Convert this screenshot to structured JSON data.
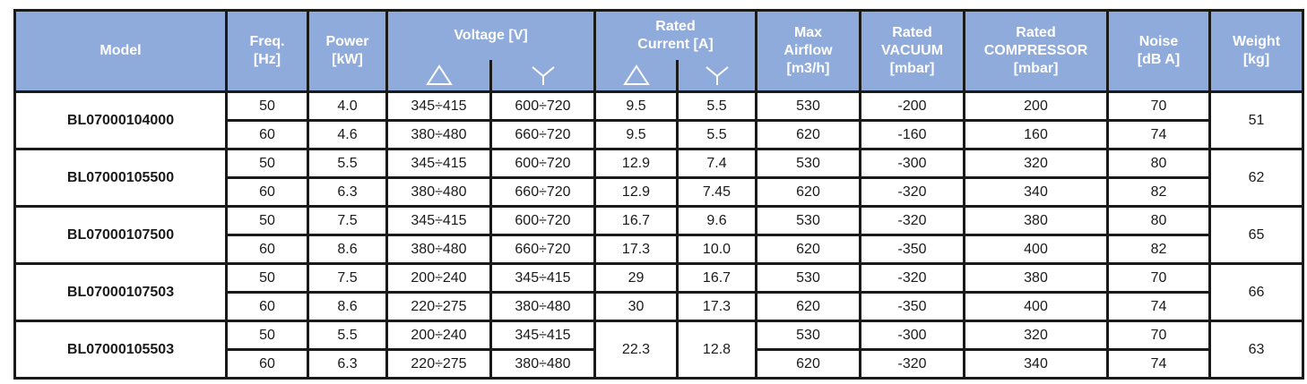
{
  "header": {
    "model": "Model",
    "freq": [
      "Freq.",
      "[Hz]"
    ],
    "power": [
      "Power",
      "[kW]"
    ],
    "voltage": "Voltage [V]",
    "rated_current": [
      "Rated",
      "Current [A]"
    ],
    "airflow": [
      "Max",
      "Airflow",
      "[m3/h]"
    ],
    "vacuum": [
      "Rated",
      "VACUUM",
      "[mbar]"
    ],
    "compressor": [
      "Rated",
      "COMPRESSOR",
      "[mbar]"
    ],
    "noise": [
      "Noise",
      "[dB A]"
    ],
    "weight": [
      "Weight",
      "[kg]"
    ],
    "delta_icon": "delta-icon",
    "star_icon": "star-icon"
  },
  "models": [
    {
      "model": "BL07000104000",
      "weight": "51",
      "rows": [
        {
          "freq": "50",
          "power": "4.0",
          "v_delta": "345÷415",
          "v_star": "600÷720",
          "i_delta": "9.5",
          "i_star": "5.5",
          "airflow": "530",
          "vacuum": "-200",
          "compressor": "200",
          "noise": "70"
        },
        {
          "freq": "60",
          "power": "4.6",
          "v_delta": "380÷480",
          "v_star": "660÷720",
          "i_delta": "9.5",
          "i_star": "5.5",
          "airflow": "620",
          "vacuum": "-160",
          "compressor": "160",
          "noise": "74"
        }
      ]
    },
    {
      "model": "BL07000105500",
      "weight": "62",
      "rows": [
        {
          "freq": "50",
          "power": "5.5",
          "v_delta": "345÷415",
          "v_star": "600÷720",
          "i_delta": "12.9",
          "i_star": "7.4",
          "airflow": "530",
          "vacuum": "-300",
          "compressor": "320",
          "noise": "80"
        },
        {
          "freq": "60",
          "power": "6.3",
          "v_delta": "380÷480",
          "v_star": "660÷720",
          "i_delta": "12.9",
          "i_star": "7.45",
          "airflow": "620",
          "vacuum": "-320",
          "compressor": "340",
          "noise": "82"
        }
      ]
    },
    {
      "model": "BL07000107500",
      "weight": "65",
      "rows": [
        {
          "freq": "50",
          "power": "7.5",
          "v_delta": "345÷415",
          "v_star": "600÷720",
          "i_delta": "16.7",
          "i_star": "9.6",
          "airflow": "530",
          "vacuum": "-320",
          "compressor": "380",
          "noise": "80"
        },
        {
          "freq": "60",
          "power": "8.6",
          "v_delta": "380÷480",
          "v_star": "660÷720",
          "i_delta": "17.3",
          "i_star": "10.0",
          "airflow": "620",
          "vacuum": "-350",
          "compressor": "400",
          "noise": "82"
        }
      ]
    },
    {
      "model": "BL07000107503",
      "weight": "66",
      "rows": [
        {
          "freq": "50",
          "power": "7.5",
          "v_delta": "200÷240",
          "v_star": "345÷415",
          "i_delta": "29",
          "i_star": "16.7",
          "airflow": "530",
          "vacuum": "-320",
          "compressor": "380",
          "noise": "70"
        },
        {
          "freq": "60",
          "power": "8.6",
          "v_delta": "220÷275",
          "v_star": "380÷480",
          "i_delta": "30",
          "i_star": "17.3",
          "airflow": "620",
          "vacuum": "-350",
          "compressor": "400",
          "noise": "74"
        }
      ]
    },
    {
      "model": "BL07000105503",
      "weight": "63",
      "current_merged": {
        "i_delta": "22.3",
        "i_star": "12.8"
      },
      "rows": [
        {
          "freq": "50",
          "power": "5.5",
          "v_delta": "200÷240",
          "v_star": "345÷415",
          "airflow": "530",
          "vacuum": "-300",
          "compressor": "320",
          "noise": "70"
        },
        {
          "freq": "60",
          "power": "6.3",
          "v_delta": "220÷275",
          "v_star": "380÷480",
          "airflow": "620",
          "vacuum": "-320",
          "compressor": "340",
          "noise": "74"
        }
      ]
    }
  ]
}
